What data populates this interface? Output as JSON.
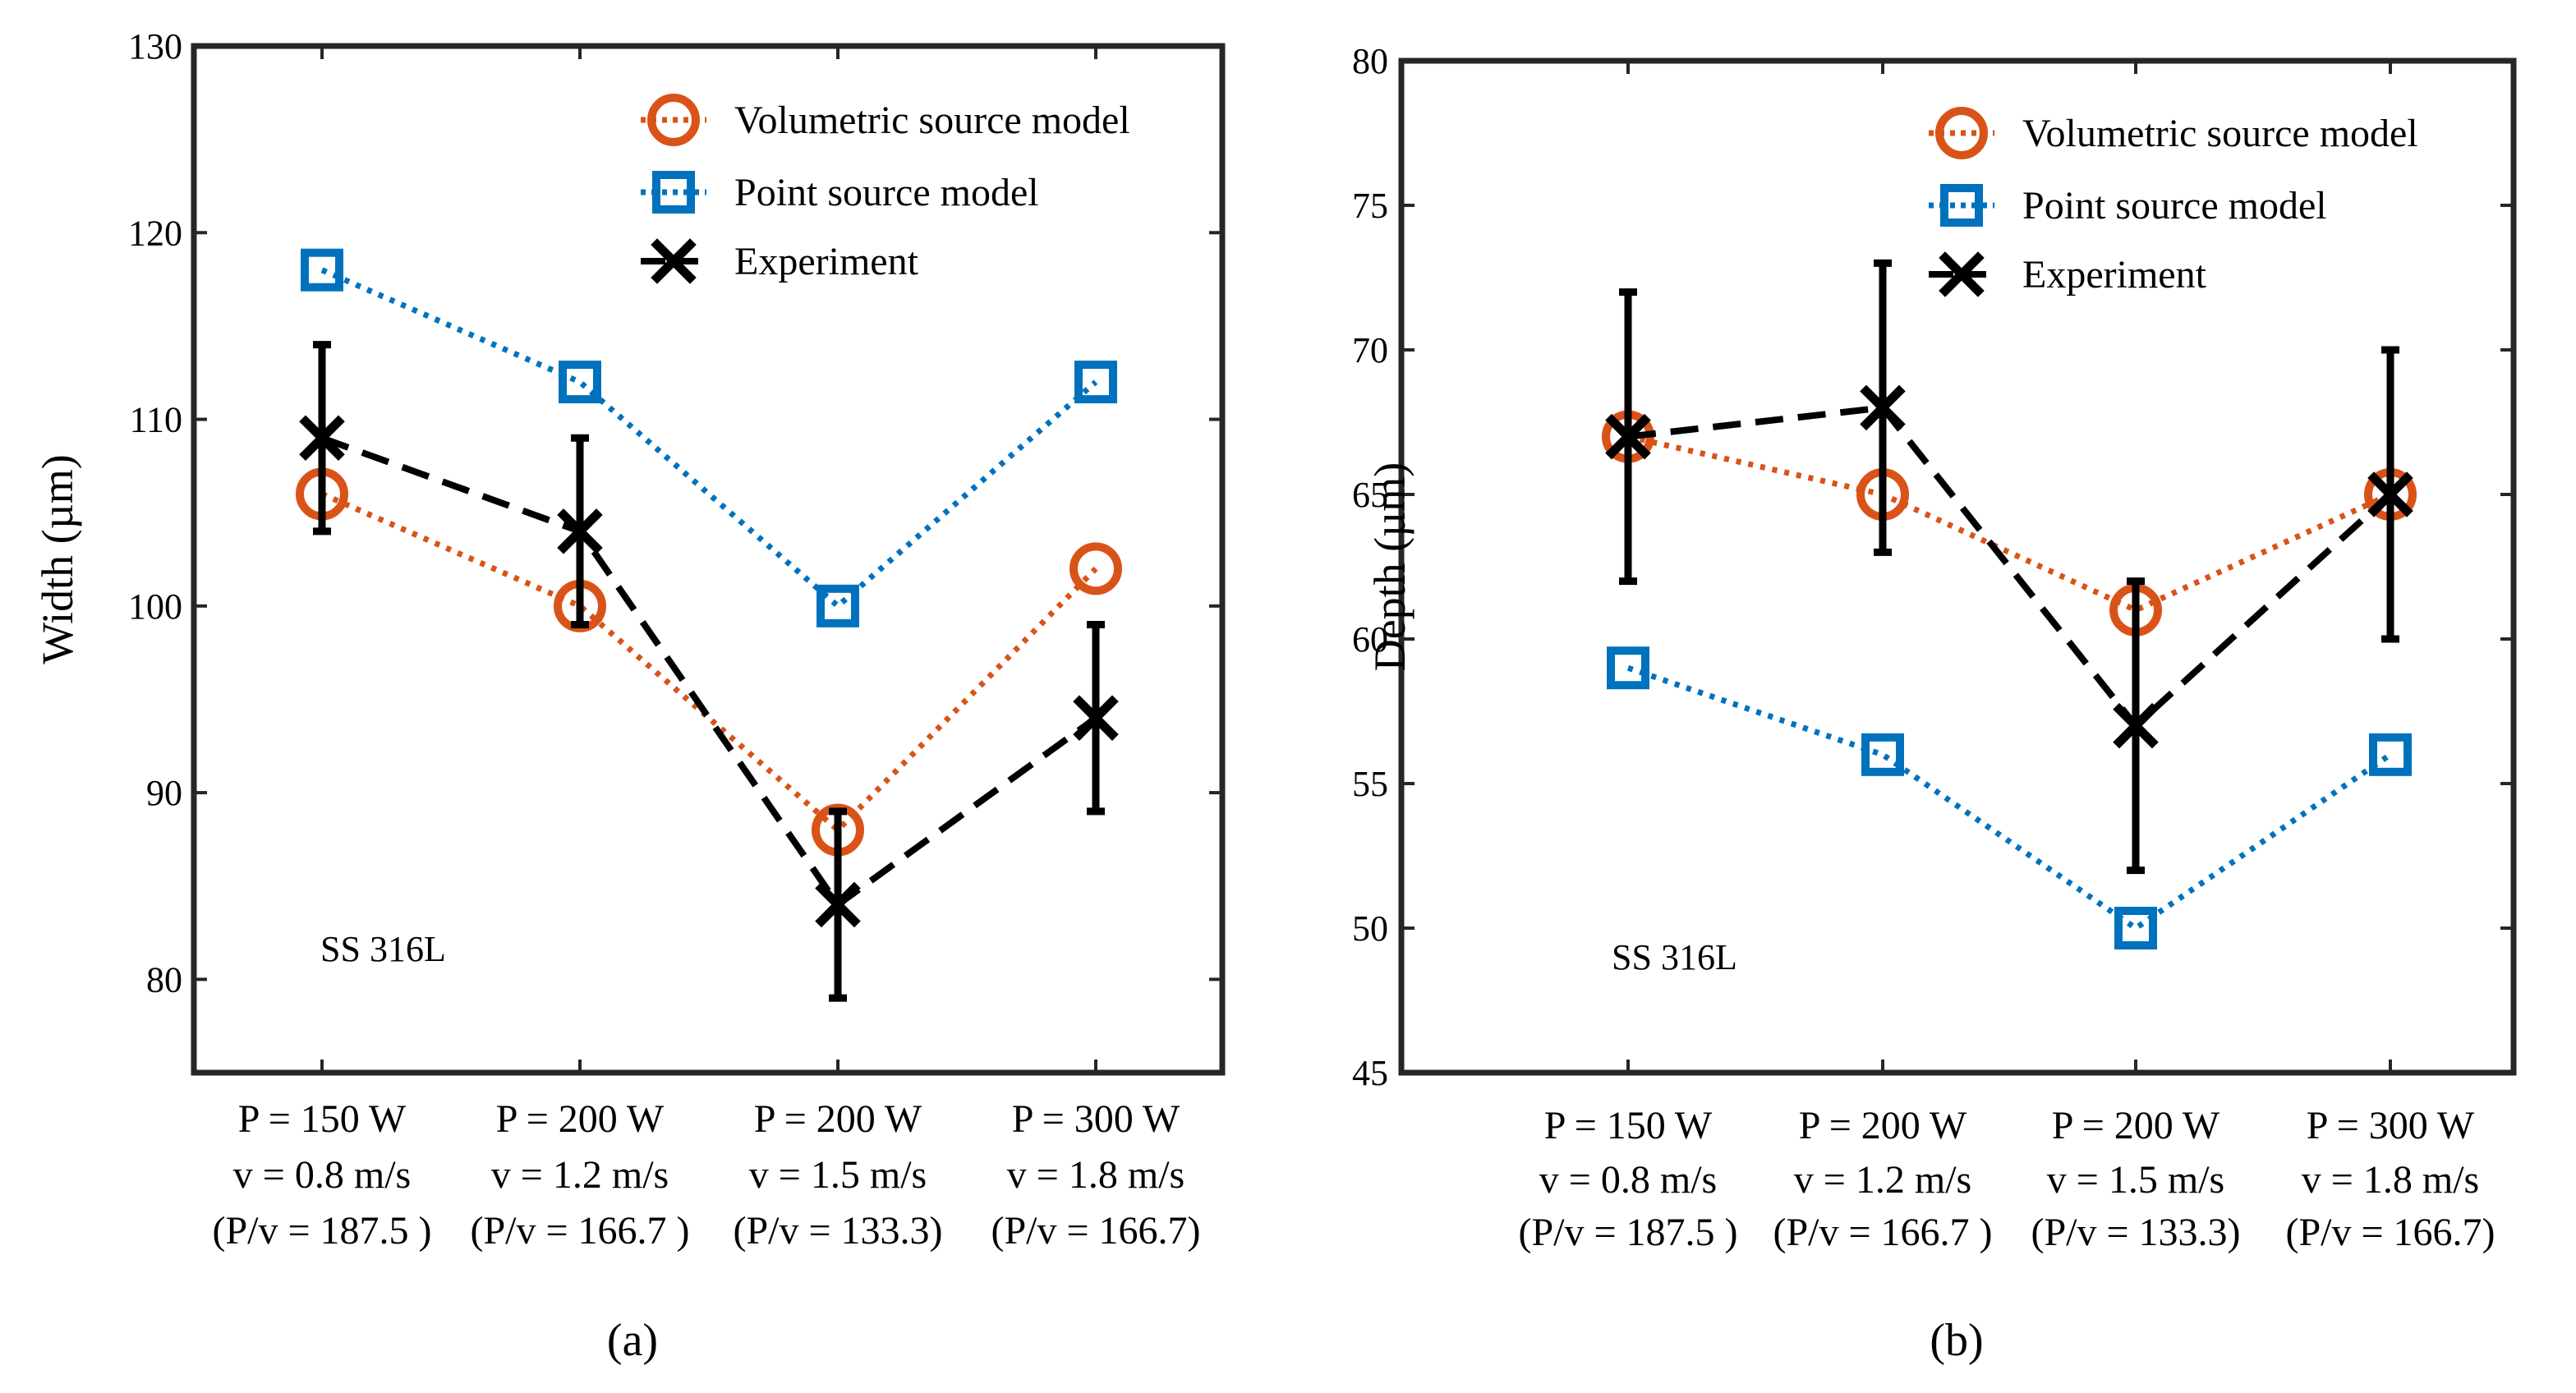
{
  "chart_data": [
    {
      "id": "a",
      "type": "line",
      "caption": "(a)",
      "ylabel": "Width (µm)",
      "ylim": [
        75,
        130
      ],
      "yticks": [
        80,
        90,
        100,
        110,
        120,
        130
      ],
      "categories": [
        {
          "line1": "P = 150 W",
          "line2": "v = 0.8 m/s",
          "line3": "(P/v = 187.5 )"
        },
        {
          "line1": "P = 200 W",
          "line2": "v = 1.2 m/s",
          "line3": "(P/v = 166.7 )"
        },
        {
          "line1": "P = 200 W",
          "line2": "v = 1.5 m/s",
          "line3": "(P/v = 133.3)"
        },
        {
          "line1": "P = 300 W",
          "line2": "v = 1.8 m/s",
          "line3": "(P/v = 166.7)"
        }
      ],
      "annotation": "SS 316L",
      "series": [
        {
          "name": "Volumetric source model",
          "key": "volumetric",
          "color": "#D95319",
          "dash": "dotted",
          "marker": "circle",
          "values": [
            106,
            100,
            88,
            102
          ]
        },
        {
          "name": "Point source model",
          "key": "point",
          "color": "#0072BD",
          "dash": "dotted",
          "marker": "square",
          "values": [
            118,
            112,
            100,
            112
          ]
        },
        {
          "name": "Experiment",
          "key": "experiment",
          "color": "#000000",
          "dash": "dashed",
          "marker": "x",
          "values": [
            109,
            104,
            84,
            94
          ],
          "error_low": [
            104,
            99,
            79,
            89
          ],
          "error_high": [
            114,
            109,
            89,
            99
          ]
        }
      ]
    },
    {
      "id": "b",
      "type": "line",
      "caption": "(b)",
      "ylabel": "Depth (µm)",
      "ylim": [
        45,
        80
      ],
      "yticks": [
        45,
        50,
        55,
        60,
        65,
        70,
        75,
        80
      ],
      "categories": [
        {
          "line1": "P = 150 W",
          "line2": "v = 0.8 m/s",
          "line3": "(P/v = 187.5 )"
        },
        {
          "line1": "P = 200 W",
          "line2": "v = 1.2 m/s",
          "line3": "(P/v = 166.7 )"
        },
        {
          "line1": "P = 200 W",
          "line2": "v = 1.5 m/s",
          "line3": "(P/v = 133.3)"
        },
        {
          "line1": "P = 300 W",
          "line2": "v = 1.8 m/s",
          "line3": "(P/v = 166.7)"
        }
      ],
      "annotation": "SS 316L",
      "series": [
        {
          "name": "Volumetric source model",
          "key": "volumetric",
          "color": "#D95319",
          "dash": "dotted",
          "marker": "circle",
          "values": [
            67,
            65,
            61,
            65
          ]
        },
        {
          "name": "Point source model",
          "key": "point",
          "color": "#0072BD",
          "dash": "dotted",
          "marker": "square",
          "values": [
            59,
            56,
            50,
            56
          ]
        },
        {
          "name": "Experiment",
          "key": "experiment",
          "color": "#000000",
          "dash": "dashed",
          "marker": "x",
          "values": [
            67,
            68,
            57,
            65
          ],
          "error_low": [
            62,
            63,
            52,
            60
          ],
          "error_high": [
            72,
            73,
            62,
            70
          ]
        }
      ]
    }
  ]
}
